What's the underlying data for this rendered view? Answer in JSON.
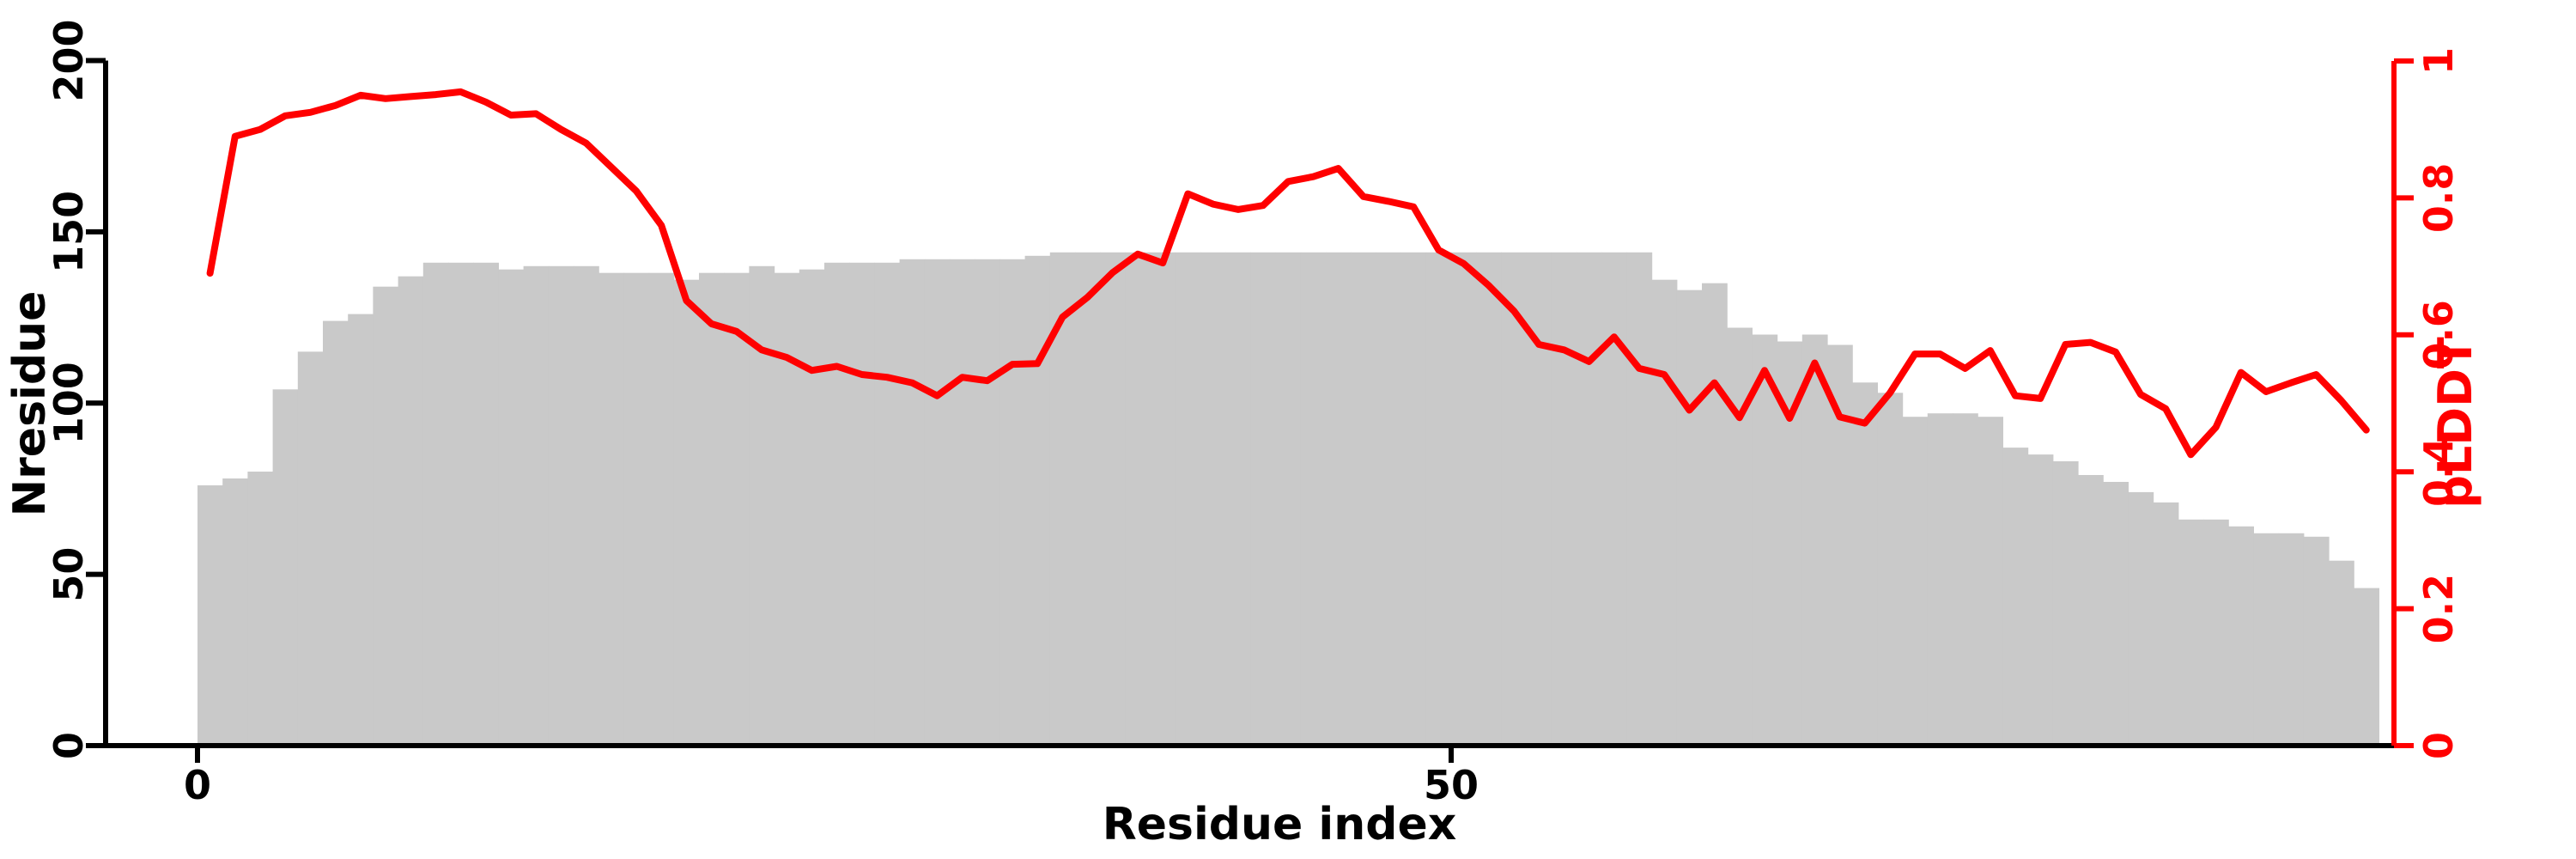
{
  "colors": {
    "bar_fill": "#c9c9c9",
    "line_color": "#ff0000",
    "right_axis_color": "#ff0000",
    "left_axis_color": "#000000",
    "background": "#ffffff"
  },
  "chart_data": {
    "type": "bar",
    "subtype": "bar-with-overlaid-line-dual-axis",
    "title": "",
    "xlabel": "Residue index",
    "x_axis": {
      "label": "Residue index",
      "ticks": [
        0,
        50
      ],
      "range": [
        0,
        87.7
      ],
      "grid": false
    },
    "left_axis": {
      "label": "Nresidue",
      "ticks": [
        0,
        50,
        100,
        150,
        200
      ],
      "range": [
        0,
        200
      ],
      "grid": false
    },
    "right_axis": {
      "label": "pLDDT",
      "ticks": [
        0,
        0.2,
        0.4,
        0.6,
        0.8,
        1
      ],
      "range": [
        0,
        1
      ],
      "grid": false
    },
    "legend": "none",
    "x": [
      0,
      1,
      2,
      3,
      4,
      5,
      6,
      7,
      8,
      9,
      10,
      11,
      12,
      13,
      14,
      15,
      16,
      17,
      18,
      19,
      20,
      21,
      22,
      23,
      24,
      25,
      26,
      27,
      28,
      29,
      30,
      31,
      32,
      33,
      34,
      35,
      36,
      37,
      38,
      39,
      40,
      41,
      42,
      43,
      44,
      45,
      46,
      47,
      48,
      49,
      50,
      51,
      52,
      53,
      54,
      55,
      56,
      57,
      58,
      59,
      60,
      61,
      62,
      63,
      64,
      65,
      66,
      67,
      68,
      69,
      70,
      71,
      72,
      73,
      74,
      75,
      76,
      77,
      78,
      79,
      80,
      81,
      82,
      83,
      84,
      85,
      86
    ],
    "series": [
      {
        "name": "Nresidue",
        "type": "bar",
        "axis": "left",
        "color": "#c9c9c9",
        "values": [
          76,
          78,
          80,
          104,
          115,
          124,
          126,
          134,
          137,
          141,
          141,
          141,
          139,
          140,
          140,
          140,
          138,
          138,
          138,
          136,
          138,
          138,
          140,
          138,
          139,
          141,
          141,
          141,
          142,
          142,
          142,
          142,
          142,
          143,
          144,
          144,
          144,
          144,
          144,
          144,
          144,
          144,
          144,
          144,
          144,
          144,
          144,
          144,
          144,
          144,
          144,
          144,
          144,
          144,
          144,
          144,
          144,
          144,
          136,
          133,
          135,
          122,
          120,
          118,
          120,
          117,
          106,
          103,
          96,
          97,
          97,
          96,
          87,
          85,
          83,
          79,
          77,
          74,
          71,
          66,
          66,
          64,
          62,
          62,
          61,
          54,
          46
        ]
      },
      {
        "name": "pLDDT",
        "type": "line",
        "axis": "right",
        "color": "#ff0000",
        "values": [
          0.69,
          0.89,
          0.9,
          0.92,
          0.925,
          0.935,
          0.95,
          0.945,
          0.948,
          0.951,
          0.955,
          0.94,
          0.921,
          0.923,
          0.9,
          0.88,
          0.845,
          0.81,
          0.76,
          0.65,
          0.616,
          0.605,
          0.578,
          0.567,
          0.548,
          0.554,
          0.542,
          0.538,
          0.53,
          0.511,
          0.538,
          0.533,
          0.557,
          0.558,
          0.626,
          0.655,
          0.691,
          0.718,
          0.705,
          0.806,
          0.791,
          0.783,
          0.789,
          0.824,
          0.831,
          0.843,
          0.802,
          0.795,
          0.787,
          0.724,
          0.704,
          0.672,
          0.635,
          0.586,
          0.578,
          0.561,
          0.597,
          0.551,
          0.542,
          0.49,
          0.53,
          0.479,
          0.548,
          0.478,
          0.559,
          0.48,
          0.471,
          0.515,
          0.572,
          0.572,
          0.551,
          0.577,
          0.511,
          0.507,
          0.586,
          0.589,
          0.575,
          0.513,
          0.492,
          0.425,
          0.465,
          0.545,
          0.517,
          0.53,
          0.542,
          0.504,
          0.461
        ]
      }
    ]
  }
}
